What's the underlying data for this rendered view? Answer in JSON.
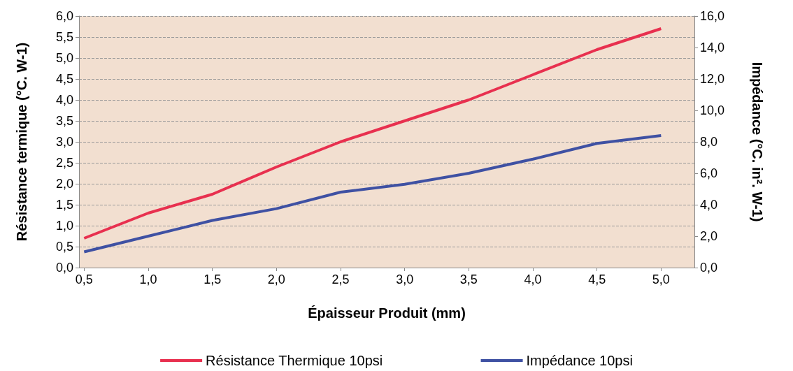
{
  "chart_data": {
    "type": "line",
    "xlabel": "Épaisseur Produit (mm)",
    "ylabel": "Résistance termique (°C. W-1)",
    "y2label": "Impédance (°C. in². W-1)",
    "x": [
      0.5,
      1.0,
      1.5,
      2.0,
      2.5,
      3.0,
      3.5,
      4.0,
      4.5,
      5.0
    ],
    "series": [
      {
        "name": "Résistance Thermique 10psi",
        "color": "#e8304f",
        "values": [
          0.7,
          1.3,
          1.75,
          2.4,
          3.0,
          3.5,
          4.0,
          4.6,
          5.2,
          5.7
        ]
      },
      {
        "name": "Impédance 10psi",
        "color": "#3f51a3",
        "axis": "y2",
        "values": [
          1.0,
          2.0,
          3.0,
          3.75,
          4.8,
          5.3,
          6.0,
          6.9,
          7.9,
          8.4
        ]
      }
    ],
    "xlim": [
      0.46,
      5.26
    ],
    "xticks": [
      {
        "value": 0.5,
        "label": "0,5"
      },
      {
        "value": 1,
        "label": "1,0"
      },
      {
        "value": 1.5,
        "label": "1,5"
      },
      {
        "value": 2,
        "label": "2,0"
      },
      {
        "value": 2.5,
        "label": "2,5"
      },
      {
        "value": 3,
        "label": "3,0"
      },
      {
        "value": 3.5,
        "label": "3,5"
      },
      {
        "value": 4,
        "label": "4,0"
      },
      {
        "value": 4.5,
        "label": "4,5"
      },
      {
        "value": 5,
        "label": "5,0"
      }
    ],
    "ylim": [
      0,
      6
    ],
    "yticks": [
      {
        "value": 0,
        "label": "0,0"
      },
      {
        "value": 0.5,
        "label": "0,5"
      },
      {
        "value": 1,
        "label": "1,0"
      },
      {
        "value": 1.5,
        "label": "1,5"
      },
      {
        "value": 2,
        "label": "2,0"
      },
      {
        "value": 2.5,
        "label": "2,5"
      },
      {
        "value": 3,
        "label": "3,0"
      },
      {
        "value": 3.5,
        "label": "3,5"
      },
      {
        "value": 4,
        "label": "4,0"
      },
      {
        "value": 4.5,
        "label": "4,5"
      },
      {
        "value": 5,
        "label": "5,0"
      },
      {
        "value": 5.5,
        "label": "5,5"
      },
      {
        "value": 6,
        "label": "6,0"
      }
    ],
    "y2lim": [
      0,
      16
    ],
    "y2ticks": [
      {
        "value": 0,
        "label": "0,0"
      },
      {
        "value": 2,
        "label": "2,0"
      },
      {
        "value": 4,
        "label": "4,0"
      },
      {
        "value": 6,
        "label": "6,0"
      },
      {
        "value": 8,
        "label": "8,0"
      },
      {
        "value": 10,
        "label": "10,0"
      },
      {
        "value": 12,
        "label": "12,0"
      },
      {
        "value": 14,
        "label": "14,0"
      },
      {
        "value": 16,
        "label": "16,0"
      }
    ],
    "grid": "y",
    "legend": "bottom",
    "marker": "none",
    "line_style": "solid"
  }
}
